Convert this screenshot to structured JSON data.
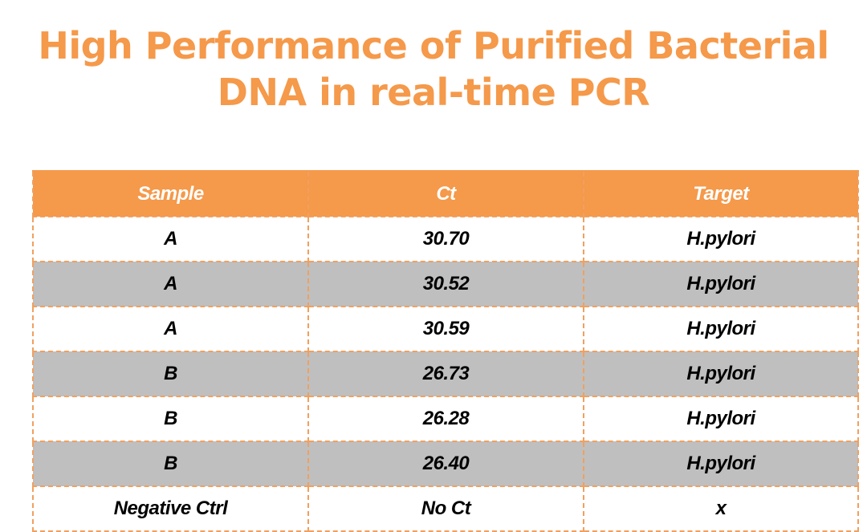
{
  "title": {
    "line1": "High Performance of Purified Bacterial",
    "line2": "DNA in real-time PCR"
  },
  "colors": {
    "accent": "#f5994a",
    "row_alt": "#bfbfbf",
    "row_base": "#ffffff"
  },
  "table": {
    "headers": [
      "Sample",
      "Ct",
      "Target"
    ],
    "rows": [
      [
        "A",
        "30.70",
        "H.pylori"
      ],
      [
        "A",
        "30.52",
        "H.pylori"
      ],
      [
        "A",
        "30.59",
        "H.pylori"
      ],
      [
        "B",
        "26.73",
        "H.pylori"
      ],
      [
        "B",
        "26.28",
        "H.pylori"
      ],
      [
        "B",
        "26.40",
        "H.pylori"
      ],
      [
        "Negative Ctrl",
        "No Ct",
        "x"
      ]
    ]
  }
}
